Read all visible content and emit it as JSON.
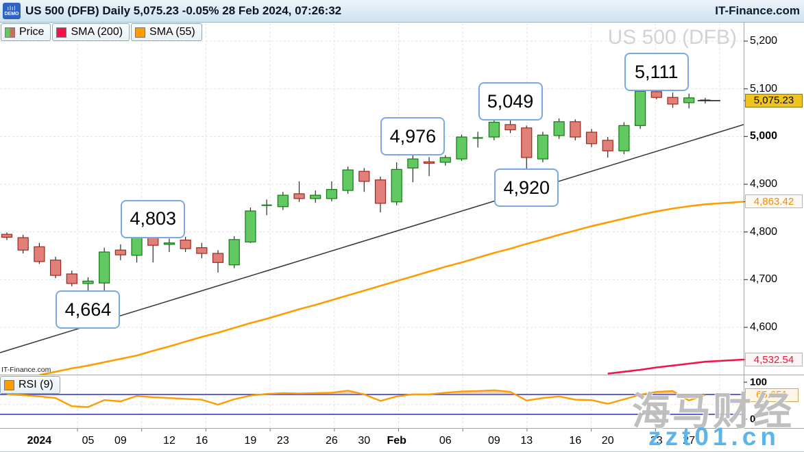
{
  "title_bar": {
    "demo": "DEMO",
    "title": "US 500 (DFB) Daily 5,075.23 -0.05% 28 Feb 2024, 07:26:32",
    "brand": "IT-Finance.com"
  },
  "legend": {
    "price": "Price",
    "sma200": "SMA (200)",
    "sma55": "SMA (55)"
  },
  "watermarks": {
    "chart": "US 500 (DFB)",
    "small_brand": "IT-Finance.com",
    "cjk": "海马财经",
    "site": "zzt01.cn"
  },
  "colors": {
    "candle_up_fill": "#62c962",
    "candle_up_stroke": "#127a12",
    "candle_down_fill": "#e18078",
    "candle_down_stroke": "#99291f",
    "wick": "#2a2a2a",
    "sma55": "#ff9c00",
    "sma200": "#f5124a",
    "rsi_line": "#ff9c00",
    "rsi_guide": "#2d2dc8",
    "rsi_fill": "rgba(205,160,125,0.45)",
    "trendline": "#3c3c3c",
    "grid": "#e0e0ea",
    "separator": "#93a9b6",
    "callout_border": "#7aa8e6",
    "tag_yellow": "#f0c41f",
    "watermark_blue": "#5cb5e9"
  },
  "price_axis": {
    "ticks": [
      {
        "label": "5,200",
        "price": 5200,
        "bold": false
      },
      {
        "label": "5,100",
        "price": 5100,
        "bold": false
      },
      {
        "label": "5,000",
        "price": 5000,
        "bold": true
      },
      {
        "label": "4,900",
        "price": 4900,
        "bold": false
      },
      {
        "label": "4,800",
        "price": 4800,
        "bold": false
      },
      {
        "label": "4,700",
        "price": 4700,
        "bold": false
      },
      {
        "label": "4,600",
        "price": 4600,
        "bold": false
      }
    ],
    "last_price_tag": {
      "label": "5,075.23",
      "price": 5075.23
    },
    "sma55_tag": {
      "label": "4,863.42",
      "price": 4863.42
    },
    "sma200_tag": {
      "label": "4,532.54",
      "price": 4532.54
    }
  },
  "chart_data": {
    "type": "candlestick",
    "title": "US 500 (DFB) Daily",
    "last_price": 5075.23,
    "change_pct": "-0.05%",
    "as_of": "28 Feb 2024, 07:26:32",
    "ylim": [
      4500,
      5230
    ],
    "dates": [
      "2023-12-28",
      "2023-12-29",
      "2024-01-02",
      "2024-01-03",
      "2024-01-04",
      "2024-01-05",
      "2024-01-08",
      "2024-01-09",
      "2024-01-10",
      "2024-01-11",
      "2024-01-12",
      "2024-01-15",
      "2024-01-16",
      "2024-01-17",
      "2024-01-18",
      "2024-01-19",
      "2024-01-22",
      "2024-01-23",
      "2024-01-24",
      "2024-01-25",
      "2024-01-26",
      "2024-01-29",
      "2024-01-30",
      "2024-01-31",
      "2024-02-01",
      "2024-02-02",
      "2024-02-05",
      "2024-02-06",
      "2024-02-07",
      "2024-02-08",
      "2024-02-09",
      "2024-02-12",
      "2024-02-13",
      "2024-02-14",
      "2024-02-15",
      "2024-02-16",
      "2024-02-19",
      "2024-02-20",
      "2024-02-21",
      "2024-02-22",
      "2024-02-23",
      "2024-02-26",
      "2024-02-27",
      "2024-02-28"
    ],
    "ohlc": [
      [
        4795,
        4799,
        4783,
        4789
      ],
      [
        4788,
        4794,
        4755,
        4762
      ],
      [
        4769,
        4777,
        4733,
        4738
      ],
      [
        4741,
        4748,
        4703,
        4709
      ],
      [
        4712,
        4719,
        4686,
        4692
      ],
      [
        4692,
        4705,
        4664,
        4697
      ],
      [
        4693,
        4767,
        4676,
        4758
      ],
      [
        4762,
        4774,
        4741,
        4752
      ],
      [
        4751,
        4795,
        4736,
        4794
      ],
      [
        4795,
        4803,
        4736,
        4772
      ],
      [
        4774,
        4786,
        4758,
        4777
      ],
      [
        4783,
        4790,
        4758,
        4765
      ],
      [
        4767,
        4777,
        4745,
        4755
      ],
      [
        4755,
        4762,
        4715,
        4736
      ],
      [
        4731,
        4791,
        4724,
        4784
      ],
      [
        4779,
        4851,
        4777,
        4844
      ],
      [
        4854,
        4868,
        4835,
        4856
      ],
      [
        4853,
        4884,
        4846,
        4877
      ],
      [
        4880,
        4906,
        4863,
        4870
      ],
      [
        4870,
        4887,
        4861,
        4877
      ],
      [
        4870,
        4906,
        4864,
        4889
      ],
      [
        4887,
        4937,
        4880,
        4930
      ],
      [
        4927,
        4934,
        4884,
        4906
      ],
      [
        4909,
        4916,
        4841,
        4860
      ],
      [
        4863,
        4946,
        4856,
        4931
      ],
      [
        4934,
        4976,
        4904,
        4953
      ],
      [
        4947,
        4957,
        4917,
        4944
      ],
      [
        4946,
        4961,
        4939,
        4956
      ],
      [
        4953,
        5004,
        4949,
        4999
      ],
      [
        4995,
        5010,
        4977,
        4997
      ],
      [
        4999,
        5038,
        4992,
        5030
      ],
      [
        5025,
        5049,
        5007,
        5014
      ],
      [
        5018,
        5023,
        4920,
        4956
      ],
      [
        4953,
        5010,
        4946,
        5003
      ],
      [
        5002,
        5038,
        4995,
        5031
      ],
      [
        5031,
        5036,
        4992,
        4999
      ],
      [
        5009,
        5016,
        4978,
        4985
      ],
      [
        4992,
        4999,
        4956,
        4970
      ],
      [
        4970,
        5030,
        4963,
        5023
      ],
      [
        5023,
        5102,
        5016,
        5095
      ],
      [
        5094,
        5111,
        5078,
        5082
      ],
      [
        5082,
        5092,
        5060,
        5068
      ],
      [
        5071,
        5090,
        5059,
        5081
      ],
      [
        5076,
        5081,
        5069,
        5075.23
      ]
    ],
    "sma55": [
      null,
      null,
      4500,
      4507,
      4514,
      4520,
      4527,
      4534,
      4541,
      4551,
      4560,
      4570,
      4580,
      4589,
      4599,
      4609,
      4618,
      4628,
      4638,
      4647,
      4657,
      4667,
      4677,
      4687,
      4697,
      4707,
      4717,
      4727,
      4736,
      4746,
      4756,
      4765,
      4775,
      4784,
      4794,
      4803,
      4812,
      4820,
      4828,
      4836,
      4843,
      4849,
      4854,
      4858
    ],
    "sma55_last": 4863.42,
    "sma200": [
      null,
      null,
      null,
      null,
      null,
      null,
      null,
      null,
      null,
      null,
      null,
      null,
      null,
      null,
      null,
      null,
      null,
      null,
      null,
      null,
      null,
      null,
      null,
      null,
      null,
      null,
      null,
      null,
      null,
      null,
      null,
      null,
      null,
      null,
      null,
      null,
      null,
      4503,
      4507,
      4511,
      4516,
      4520,
      4524,
      4528
    ],
    "sma200_last": 4532.54,
    "trendline": {
      "from_price": 4547,
      "to_price": 5025
    },
    "x_labels": [
      {
        "index": 2,
        "label": "2024",
        "bold": true
      },
      {
        "index": 5,
        "label": "05",
        "bold": false
      },
      {
        "index": 7,
        "label": "09",
        "bold": false
      },
      {
        "index": 10,
        "label": "12",
        "bold": false
      },
      {
        "index": 12,
        "label": "16",
        "bold": false
      },
      {
        "index": 15,
        "label": "19",
        "bold": false
      },
      {
        "index": 17,
        "label": "23",
        "bold": false
      },
      {
        "index": 20,
        "label": "26",
        "bold": false
      },
      {
        "index": 22,
        "label": "30",
        "bold": false
      },
      {
        "index": 24,
        "label": "Feb",
        "bold": true
      },
      {
        "index": 27,
        "label": "06",
        "bold": false
      },
      {
        "index": 30,
        "label": "09",
        "bold": false
      },
      {
        "index": 32,
        "label": "13",
        "bold": false
      },
      {
        "index": 35,
        "label": "16",
        "bold": false
      },
      {
        "index": 37,
        "label": "20",
        "bold": false
      },
      {
        "index": 40,
        "label": "23",
        "bold": false
      },
      {
        "index": 42,
        "label": "27",
        "bold": false
      }
    ],
    "callouts": [
      {
        "label": "4,664",
        "index": 5,
        "price": 4664,
        "side": "below"
      },
      {
        "label": "4,803",
        "index": 9,
        "price": 4803,
        "side": "above"
      },
      {
        "label": "4,976",
        "index": 25,
        "price": 4976,
        "side": "above"
      },
      {
        "label": "5,049",
        "index": 31,
        "price": 5049,
        "side": "above"
      },
      {
        "label": "4,920",
        "index": 32,
        "price": 4920,
        "side": "below"
      },
      {
        "label": "5,111",
        "index": 40,
        "price": 5111,
        "side": "above"
      }
    ],
    "rsi": {
      "period_label": "RSI (9)",
      "values": [
        67,
        65,
        62,
        58,
        38,
        36,
        53,
        50,
        63,
        60,
        58,
        56,
        54,
        42,
        55,
        64,
        68,
        70,
        69,
        70,
        71,
        76,
        67,
        51,
        62,
        67,
        67,
        71,
        74,
        75,
        77,
        73,
        52,
        58,
        62,
        54,
        53,
        44,
        55,
        66,
        73,
        75,
        52,
        65.651
      ],
      "last": 65.651,
      "last_label": "65.651",
      "upper_guide": 66.7,
      "lower_guide": 18.3,
      "axis_labels": [
        {
          "label": "100",
          "value": 100
        },
        {
          "label": "0",
          "value": 0
        }
      ]
    }
  }
}
